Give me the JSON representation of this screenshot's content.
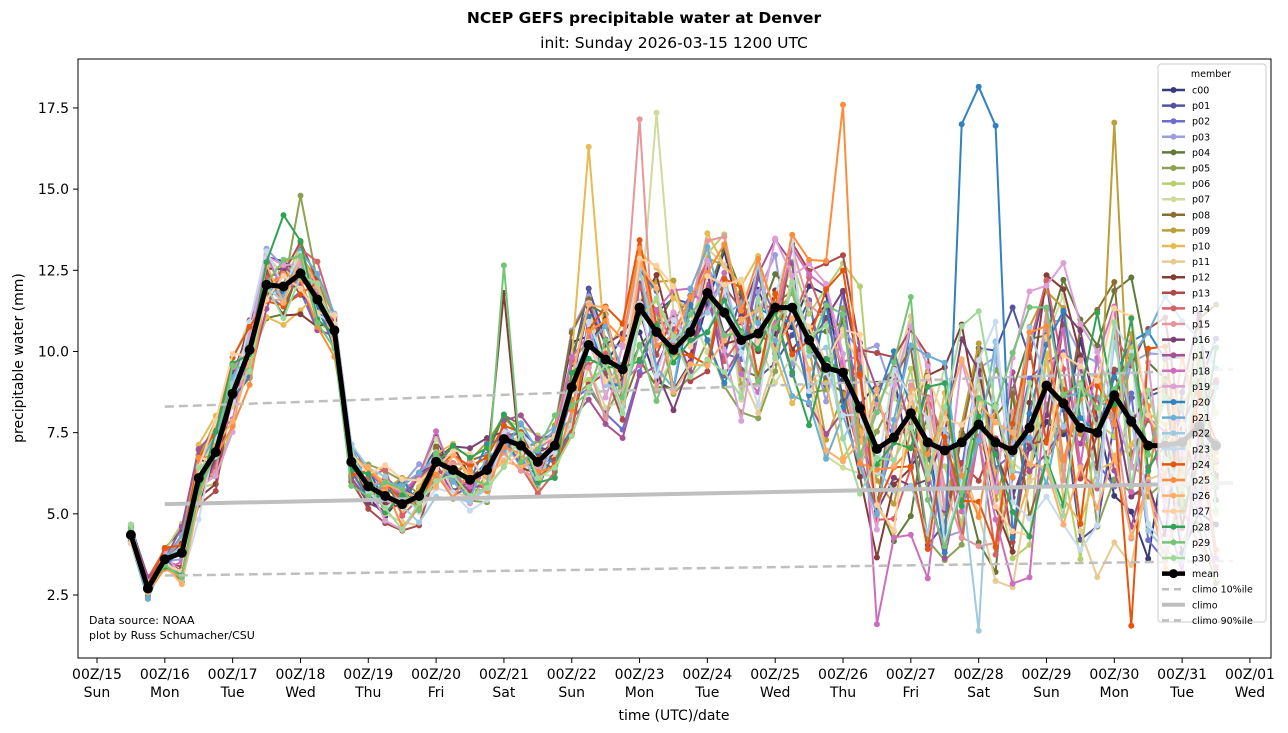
{
  "chart_data": {
    "type": "line",
    "title": "NCEP GEFS precipitable water at Denver",
    "subtitle": "init: Sunday 2026-03-15 1200 UTC",
    "xlabel": "time (UTC)/date",
    "ylabel": "precipitable water (mm)",
    "ylim": [
      0.6,
      18.9
    ],
    "yticks": [
      2.5,
      5.0,
      7.5,
      10.0,
      12.5,
      15.0,
      17.5
    ],
    "ytick_labels": [
      "2.5",
      "5.0",
      "7.5",
      "10.0",
      "12.5",
      "15.0",
      "17.5"
    ],
    "xlim_days": [
      -0.03,
      17.35
    ],
    "xticks": [
      {
        "day": 0,
        "top": "00Z/15",
        "bottom": "Sun"
      },
      {
        "day": 1,
        "top": "00Z/16",
        "bottom": "Mon"
      },
      {
        "day": 2,
        "top": "00Z/17",
        "bottom": "Tue"
      },
      {
        "day": 3,
        "top": "00Z/18",
        "bottom": "Wed"
      },
      {
        "day": 4,
        "top": "00Z/19",
        "bottom": "Thu"
      },
      {
        "day": 5,
        "top": "00Z/20",
        "bottom": "Fri"
      },
      {
        "day": 6,
        "top": "00Z/21",
        "bottom": "Sat"
      },
      {
        "day": 7,
        "top": "00Z/22",
        "bottom": "Sun"
      },
      {
        "day": 8,
        "top": "00Z/23",
        "bottom": "Mon"
      },
      {
        "day": 9,
        "top": "00Z/24",
        "bottom": "Tue"
      },
      {
        "day": 10,
        "top": "00Z/25",
        "bottom": "Wed"
      },
      {
        "day": 11,
        "top": "00Z/26",
        "bottom": "Thu"
      },
      {
        "day": 12,
        "top": "00Z/27",
        "bottom": "Fri"
      },
      {
        "day": 13,
        "top": "00Z/28",
        "bottom": "Sat"
      },
      {
        "day": 14,
        "top": "00Z/29",
        "bottom": "Sun"
      },
      {
        "day": 15,
        "top": "00Z/30",
        "bottom": "Mon"
      },
      {
        "day": 16,
        "top": "00Z/31",
        "bottom": "Tue"
      },
      {
        "day": 17,
        "top": "00Z/01",
        "bottom": "Wed"
      }
    ],
    "x_start_day": 0.5,
    "x_step_hours": 6,
    "mean": {
      "name": "mean",
      "color": "#000000",
      "values": [
        4.35,
        2.7,
        3.6,
        3.8,
        6.1,
        6.9,
        8.7,
        10.05,
        12.05,
        12.0,
        12.4,
        11.6,
        10.65,
        6.6,
        5.85,
        5.55,
        5.3,
        5.55,
        6.6,
        6.35,
        6.05,
        6.35,
        7.3,
        7.1,
        6.6,
        7.1,
        8.9,
        10.2,
        9.75,
        9.45,
        11.35,
        10.6,
        10.05,
        10.6,
        11.8,
        11.2,
        10.35,
        10.55,
        11.35,
        11.35,
        10.35,
        9.5,
        9.35,
        8.25,
        7.0,
        7.35,
        8.1,
        7.2,
        6.95,
        7.2,
        7.75,
        7.2,
        6.95,
        7.65,
        8.95,
        8.4,
        7.65,
        7.5,
        8.65,
        7.85,
        7.1,
        7.1,
        7.2,
        7.7,
        7.1
      ]
    },
    "climo": {
      "start_day": 1.0,
      "end_day": 16.75,
      "p10": {
        "name": "climo 10%ile",
        "start": 3.1,
        "end": 3.55,
        "color": "#bfbfbf"
      },
      "median": {
        "name": "climo",
        "start": 5.3,
        "end": 5.95,
        "color": "#bfbfbf"
      },
      "p90": {
        "name": "climo 90%ile",
        "start": 8.3,
        "end": 9.45,
        "color": "#bfbfbf"
      }
    },
    "members": [
      {
        "name": "c00",
        "color": "#393b79"
      },
      {
        "name": "p01",
        "color": "#5254a3"
      },
      {
        "name": "p02",
        "color": "#6b6ecf"
      },
      {
        "name": "p03",
        "color": "#9c9ede"
      },
      {
        "name": "p04",
        "color": "#637939"
      },
      {
        "name": "p05",
        "color": "#8ca252"
      },
      {
        "name": "p06",
        "color": "#b5cf6b"
      },
      {
        "name": "p07",
        "color": "#cedb9c"
      },
      {
        "name": "p08",
        "color": "#8c6d31"
      },
      {
        "name": "p09",
        "color": "#bd9e39"
      },
      {
        "name": "p10",
        "color": "#e7ba52"
      },
      {
        "name": "p11",
        "color": "#e7cb94"
      },
      {
        "name": "p12",
        "color": "#843c39"
      },
      {
        "name": "p13",
        "color": "#ad494a"
      },
      {
        "name": "p14",
        "color": "#d6616b"
      },
      {
        "name": "p15",
        "color": "#e7969c"
      },
      {
        "name": "p16",
        "color": "#7b4173"
      },
      {
        "name": "p17",
        "color": "#a55194"
      },
      {
        "name": "p18",
        "color": "#ce6dbd"
      },
      {
        "name": "p19",
        "color": "#de9ed6"
      },
      {
        "name": "p20",
        "color": "#3182bd"
      },
      {
        "name": "p21",
        "color": "#6baed6"
      },
      {
        "name": "p22",
        "color": "#9ecae1"
      },
      {
        "name": "p23",
        "color": "#c6dbef"
      },
      {
        "name": "p24",
        "color": "#e6550d"
      },
      {
        "name": "p25",
        "color": "#fd8d3c"
      },
      {
        "name": "p26",
        "color": "#fdae6b"
      },
      {
        "name": "p27",
        "color": "#fdd0a2"
      },
      {
        "name": "p28",
        "color": "#31a354"
      },
      {
        "name": "p29",
        "color": "#74c476"
      },
      {
        "name": "p30",
        "color": "#a1d99b"
      }
    ],
    "member_spread_by_day": {
      "note_on_highlights": "selected visible member extremes",
      "highlights": [
        {
          "member": "p20",
          "day": 13.0,
          "value": 18.15
        },
        {
          "member": "p20",
          "day": 12.75,
          "value": 17.0
        },
        {
          "member": "p20",
          "day": 13.25,
          "value": 16.95
        },
        {
          "member": "p25",
          "day": 11.0,
          "value": 17.6
        },
        {
          "member": "p07",
          "day": 8.25,
          "value": 17.35
        },
        {
          "member": "p15",
          "day": 8.0,
          "value": 17.15
        },
        {
          "member": "p09",
          "day": 15.0,
          "value": 17.05
        },
        {
          "member": "p10",
          "day": 7.25,
          "value": 16.3
        },
        {
          "member": "p05",
          "day": 3.0,
          "value": 14.8
        },
        {
          "member": "p28",
          "day": 2.75,
          "value": 14.2
        },
        {
          "member": "p22",
          "day": 13.0,
          "value": 1.4
        },
        {
          "member": "p24",
          "day": 15.25,
          "value": 1.55
        },
        {
          "member": "p18",
          "day": 11.5,
          "value": 1.6
        },
        {
          "member": "p29",
          "day": 6.0,
          "value": 12.65
        },
        {
          "member": "p12",
          "day": 6.0,
          "value": 11.8
        }
      ]
    },
    "legend": {
      "title": "member",
      "position": "right",
      "entries": [
        "c00",
        "p01",
        "p02",
        "p03",
        "p04",
        "p05",
        "p06",
        "p07",
        "p08",
        "p09",
        "p10",
        "p11",
        "p12",
        "p13",
        "p14",
        "p15",
        "p16",
        "p17",
        "p18",
        "p19",
        "p20",
        "p21",
        "p22",
        "p23",
        "p24",
        "p25",
        "p26",
        "p27",
        "p28",
        "p29",
        "p30",
        "mean",
        "climo 10%ile",
        "climo",
        "climo 90%ile"
      ]
    },
    "annotations": [
      "Data source: NOAA",
      "plot by Russ Schumacher/CSU"
    ],
    "grid": false
  }
}
